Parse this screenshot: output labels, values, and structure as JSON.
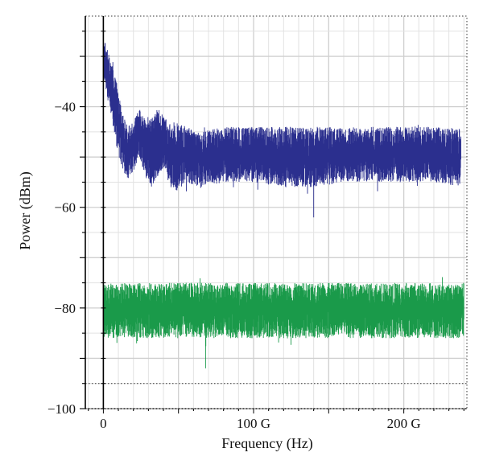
{
  "chart_data": {
    "type": "line",
    "xlabel": "Frequency (Hz)",
    "ylabel": "Power (dBm)",
    "xlim": [
      -12,
      242
    ],
    "ylim": [
      -100,
      -22
    ],
    "x_unit": "GHz",
    "x_ticks": [
      {
        "value": 0,
        "label": "0"
      },
      {
        "value": 100,
        "label": "100 G"
      },
      {
        "value": 200,
        "label": "200 G"
      }
    ],
    "y_ticks": [
      {
        "value": -40,
        "label": "−40"
      },
      {
        "value": -60,
        "label": "−60"
      },
      {
        "value": -80,
        "label": "−80"
      },
      {
        "value": -100,
        "label": "−100"
      }
    ],
    "grid": true,
    "legend": "none",
    "series": [
      {
        "color": "#2b2f8e",
        "x": [
          0,
          2,
          5,
          8,
          12,
          16,
          20,
          24,
          28,
          32,
          36,
          40,
          44,
          48,
          55,
          65,
          80,
          100,
          120,
          140,
          160,
          180,
          200,
          220,
          238
        ],
        "upper": [
          -26,
          -28,
          -31,
          -34,
          -40,
          -44,
          -43,
          -40,
          -42,
          -42,
          -40,
          -42,
          -43,
          -43,
          -44,
          -45,
          -44,
          -44,
          -44,
          -44,
          -44,
          -44,
          -44,
          -44,
          -44
        ],
        "lower": [
          -34,
          -37,
          -42,
          -47,
          -52,
          -55,
          -53,
          -50,
          -54,
          -56,
          -54,
          -52,
          -56,
          -57,
          -55,
          -56,
          -55,
          -55,
          -56,
          -56,
          -55,
          -55,
          -55,
          -55,
          -56
        ],
        "min_spike": {
          "x": 140,
          "y": -62
        }
      },
      {
        "color": "#1a9a4a",
        "x": [
          0,
          240
        ],
        "upper": [
          -75,
          -75
        ],
        "lower": [
          -86,
          -86
        ],
        "min_spike": {
          "x": 68,
          "y": -92
        }
      }
    ]
  }
}
